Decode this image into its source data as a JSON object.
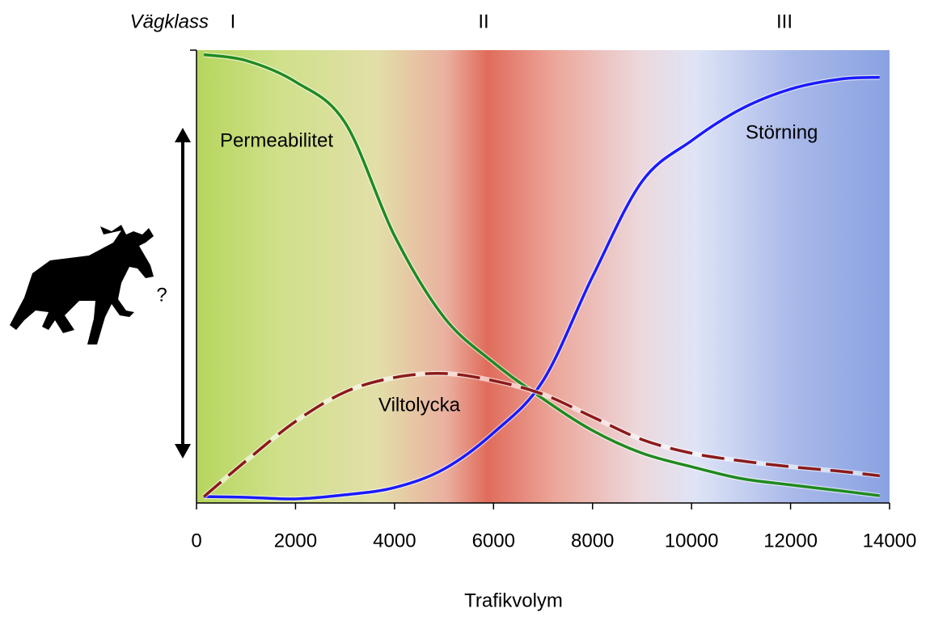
{
  "chart_data": {
    "type": "line",
    "xlabel": "Trafikvolym",
    "road_class": {
      "title": "Vägklass",
      "labels": [
        "I",
        "II",
        "III"
      ]
    },
    "annotation": "?",
    "x": [
      150,
      1000,
      2000,
      3000,
      4000,
      5000,
      6000,
      7000,
      8000,
      9000,
      10000,
      11000,
      12000,
      13000,
      13800
    ],
    "xlim": [
      0,
      14000
    ],
    "xticks": [
      0,
      2000,
      4000,
      6000,
      8000,
      10000,
      12000,
      14000
    ],
    "ylim": [
      0,
      1
    ],
    "grid": false,
    "series": [
      {
        "name": "Permeabilitet",
        "color": "#1f8a1f",
        "dashed": false,
        "values": [
          0.99,
          0.977,
          0.93,
          0.84,
          0.59,
          0.41,
          0.31,
          0.23,
          0.16,
          0.11,
          0.08,
          0.054,
          0.04,
          0.027,
          0.016
        ]
      },
      {
        "name": "Störning",
        "color": "#1a1aff",
        "dashed": false,
        "values": [
          0.014,
          0.0125,
          0.009,
          0.018,
          0.034,
          0.075,
          0.155,
          0.27,
          0.5,
          0.71,
          0.8,
          0.87,
          0.914,
          0.936,
          0.94
        ]
      },
      {
        "name": "Viltolycka",
        "color": "#8b1a1a",
        "dashed": true,
        "values": [
          0.014,
          0.093,
          0.18,
          0.245,
          0.277,
          0.286,
          0.27,
          0.24,
          0.19,
          0.14,
          0.11,
          0.093,
          0.08,
          0.07,
          0.06
        ]
      }
    ]
  }
}
